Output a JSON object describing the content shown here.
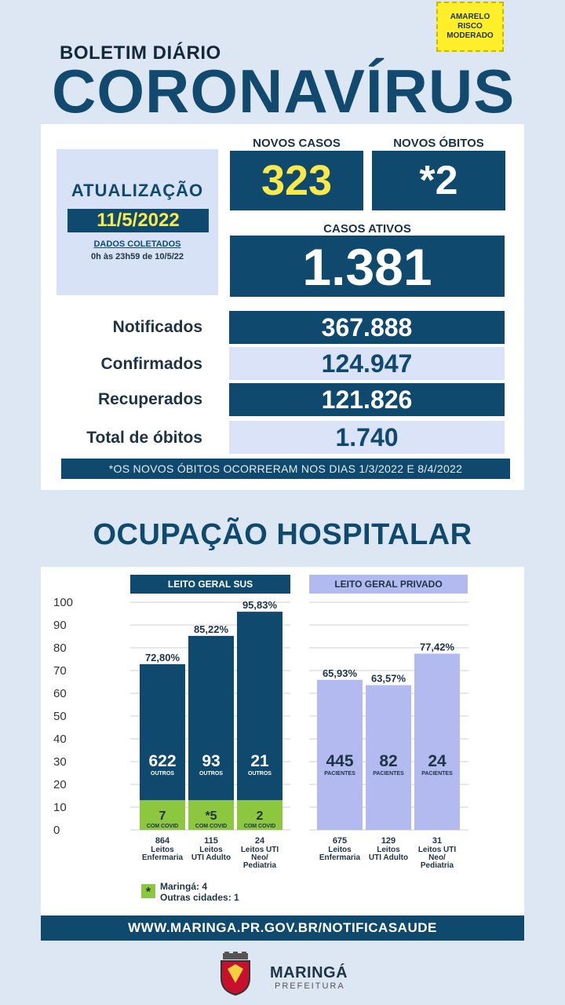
{
  "badge": {
    "line1": "AMARELO",
    "line2": "RISCO",
    "line3": "MODERADO"
  },
  "header": {
    "kicker": "BOLETIM DIÁRIO",
    "title": "CORONAVÍRUS"
  },
  "update": {
    "title": "ATUALIZAÇÃO",
    "date": "11/5/2022",
    "collected": "DADOS COLETADOS",
    "range": "0h às 23h59 de 10/5/22"
  },
  "new_cases": {
    "label": "NOVOS CASOS",
    "value": "323"
  },
  "new_deaths": {
    "label": "NOVOS ÓBITOS",
    "value": "*2"
  },
  "active": {
    "label": "CASOS ATIVOS",
    "value": "1.381"
  },
  "stats": [
    {
      "label": "Notificados",
      "value": "367.888"
    },
    {
      "label": "Confirmados",
      "value": "124.947"
    },
    {
      "label": "Recuperados",
      "value": "121.826"
    },
    {
      "label": "Total de óbitos",
      "value": "1.740"
    }
  ],
  "note": "*OS NOVOS ÓBITOS OCORRERAM NOS DIAS 1/3/2022 E 8/4/2022",
  "hospital_title": "OCUPAÇÃO HOSPITALAR",
  "chart_data": {
    "type": "bar",
    "ylim": [
      0,
      100
    ],
    "yticks": [
      "100",
      "90",
      "80",
      "70",
      "60",
      "50",
      "40",
      "30",
      "20",
      "10",
      "0"
    ],
    "colors": {
      "sus": "#0f4a6e",
      "covid": "#8dc63f",
      "private": "#b3baf0"
    },
    "groups": [
      {
        "header": "LEITO GERAL SUS",
        "bars": [
          {
            "pct": 72.8,
            "pct_label": "72,80%",
            "others": "622",
            "others_label": "OUTROS",
            "covid": "7",
            "covid_label": "COM COVID",
            "beds": "864",
            "bed_type": [
              "Leitos",
              "Enfermaria"
            ]
          },
          {
            "pct": 85.22,
            "pct_label": "85,22%",
            "others": "93",
            "others_label": "OUTROS",
            "covid": "*5",
            "covid_label": "COM COVID",
            "beds": "115",
            "bed_type": [
              "Leitos",
              "UTI Adulto"
            ]
          },
          {
            "pct": 95.83,
            "pct_label": "95,83%",
            "others": "21",
            "others_label": "OUTROS",
            "covid": "2",
            "covid_label": "COM COVID",
            "beds": "24",
            "bed_type": [
              "Leitos UTI",
              "Neo/",
              "Pediatria"
            ]
          }
        ]
      },
      {
        "header": "LEITO GERAL PRIVADO",
        "bars": [
          {
            "pct": 65.93,
            "pct_label": "65,93%",
            "patients": "445",
            "patients_label": "PACIENTES",
            "beds": "675",
            "bed_type": [
              "Leitos",
              "Enfermaria"
            ]
          },
          {
            "pct": 63.57,
            "pct_label": "63,57%",
            "patients": "82",
            "patients_label": "PACIENTES",
            "beds": "129",
            "bed_type": [
              "Leitos",
              "UTI Adulto"
            ]
          },
          {
            "pct": 77.42,
            "pct_label": "77,42%",
            "patients": "24",
            "patients_label": "PACIENTES",
            "beds": "31",
            "bed_type": [
              "Leitos UTI",
              "Neo/",
              "Pediatria"
            ]
          }
        ]
      }
    ]
  },
  "legend": {
    "symbol": "*",
    "line1": "Maringá: 4",
    "line2": "Outras cidades: 1"
  },
  "footer": "WWW.MARINGA.PR.GOV.BR/NOTIFICASAUDE",
  "logo": {
    "name": "MARINGÁ",
    "sub": "PREFEITURA"
  }
}
